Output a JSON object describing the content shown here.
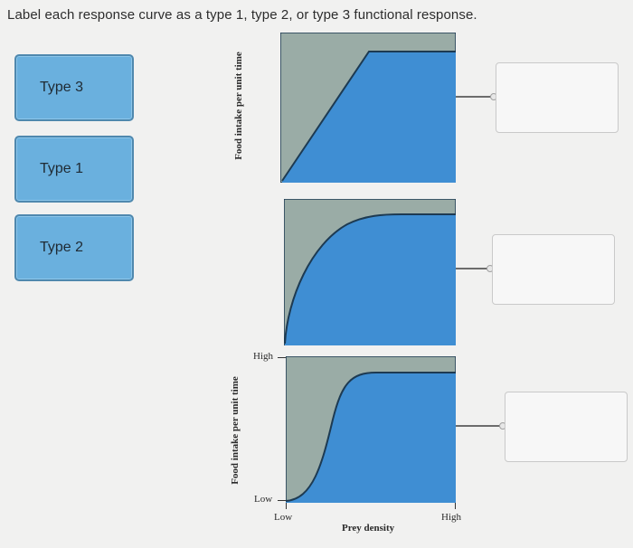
{
  "instruction": "Label each response curve as a type 1, type 2, or type 3 functional response.",
  "choices": [
    {
      "label": "Type 3"
    },
    {
      "label": "Type 1"
    },
    {
      "label": "Type 2"
    }
  ],
  "graphs": {
    "ylabel": "Food intake per unit time",
    "xlabel": "Prey density",
    "y_high": "High",
    "y_low": "Low",
    "x_low": "Low",
    "x_high": "High",
    "colors": {
      "background": "#9aaca6",
      "fill": "#3f8ed3",
      "line": "#1d3a52"
    }
  },
  "drop_zones": [
    {
      "label": ""
    },
    {
      "label": ""
    },
    {
      "label": ""
    }
  ]
}
